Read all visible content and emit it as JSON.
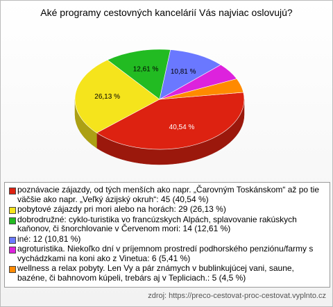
{
  "chart_data": {
    "type": "pie",
    "title": "Aké programy cestovných kancelárií Vás najviac oslovujú?",
    "categories": [
      "poznávacie zájazdy, od tých menších ako napr. „Čarovným Toskánskom“ až po tie väčšie ako napr. „Veľký ázijský okruh“: 45 (40,54 %)",
      "pobytové zájazdy pri mori alebo na horách: 29 (26,13 %)",
      "dobrodružné: cyklo-turistika vo francúzskych Alpách, splavovanie rakúskych kaňonov, či šnorchlovanie v Červenom mori: 14 (12,61 %)",
      "iné: 12 (10,81 %)",
      "agroturistika. Niekoľko dní v príjemnom prostredí podhorského penziónu/farmy s vychádzkami na koni ako z Vinetua: 6 (5,41 %)",
      "wellness a relax pobyty. Len Vy a pár známych v bublinkujúcej vani, saune, bazéne, či bahnovom kúpeli, trebárs aj v Tepliciach.: 5 (4,5 %)"
    ],
    "values": [
      40.54,
      26.13,
      12.61,
      10.81,
      5.41,
      4.5
    ],
    "value_labels": [
      "40,54 %",
      "26,13 %",
      "12,61 %",
      "10,81 %",
      null,
      null
    ],
    "colors": [
      "#dd2211",
      "#f5e41c",
      "#22bb22",
      "#6a78ff",
      "#dd22dd",
      "#ff8a00"
    ],
    "source": "zdroj: https://preco-cestovat-proc-cestovat.vyplnto.cz"
  }
}
